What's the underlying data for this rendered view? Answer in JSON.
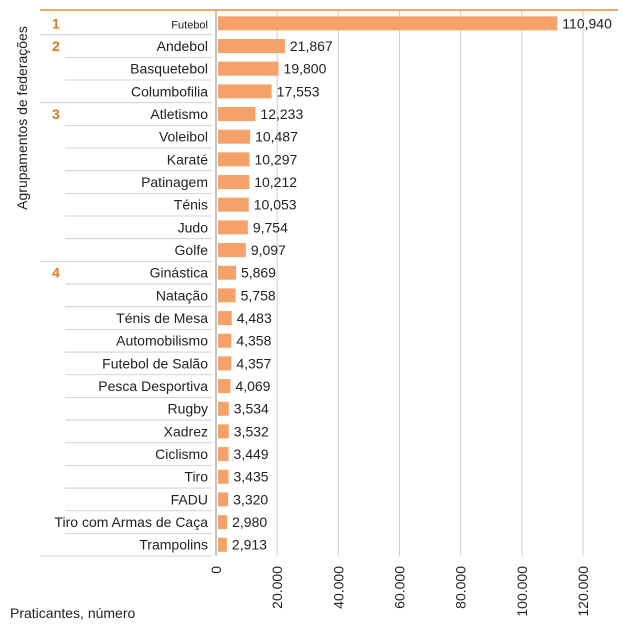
{
  "chart_data": {
    "type": "bar",
    "orientation": "horizontal",
    "ylabel": "Agrupamentos de federações",
    "xlabel": "Praticantes, número",
    "xlim": [
      0,
      120000
    ],
    "xticks": [
      "0",
      "20.000",
      "40.000",
      "60.000",
      "80.000",
      "100.000",
      "120.000"
    ],
    "grid": true,
    "bar_color": "#f5a26a",
    "group_color": "#e8731a",
    "categories": [
      "Futebol",
      "Andebol",
      "Basquetebol",
      "Columbofilia",
      "Atletismo",
      "Voleibol",
      "Karaté",
      "Patinagem",
      "Ténis",
      "Judo",
      "Golfe",
      "Ginástica",
      "Natação",
      "Ténis de Mesa",
      "Automobilismo",
      "Futebol de Salão",
      "Pesca Desportiva",
      "Rugby",
      "Xadrez",
      "Ciclismo",
      "Tiro",
      "FADU",
      "Tiro com Armas de Caça",
      "Trampolins"
    ],
    "values": [
      110940,
      21867,
      19800,
      17553,
      12233,
      10487,
      10297,
      10212,
      10053,
      9754,
      9097,
      5869,
      5758,
      4483,
      4358,
      4357,
      4069,
      3534,
      3532,
      3449,
      3435,
      3320,
      2980,
      2913
    ],
    "value_labels": [
      "110,940",
      "21,867",
      "19,800",
      "17,553",
      "12,233",
      "10,487",
      "10,297",
      "10,212",
      "10,053",
      "9,754",
      "9,097",
      "5,869",
      "5,758",
      "4,483",
      "4,358",
      "4,357",
      "4,069",
      "3,534",
      "3,532",
      "3,449",
      "3,435",
      "3,320",
      "2,980",
      "2,913"
    ],
    "groups": [
      {
        "label": "1",
        "start_index": 0
      },
      {
        "label": "2",
        "start_index": 1
      },
      {
        "label": "3",
        "start_index": 4
      },
      {
        "label": "4",
        "start_index": 11
      }
    ]
  }
}
